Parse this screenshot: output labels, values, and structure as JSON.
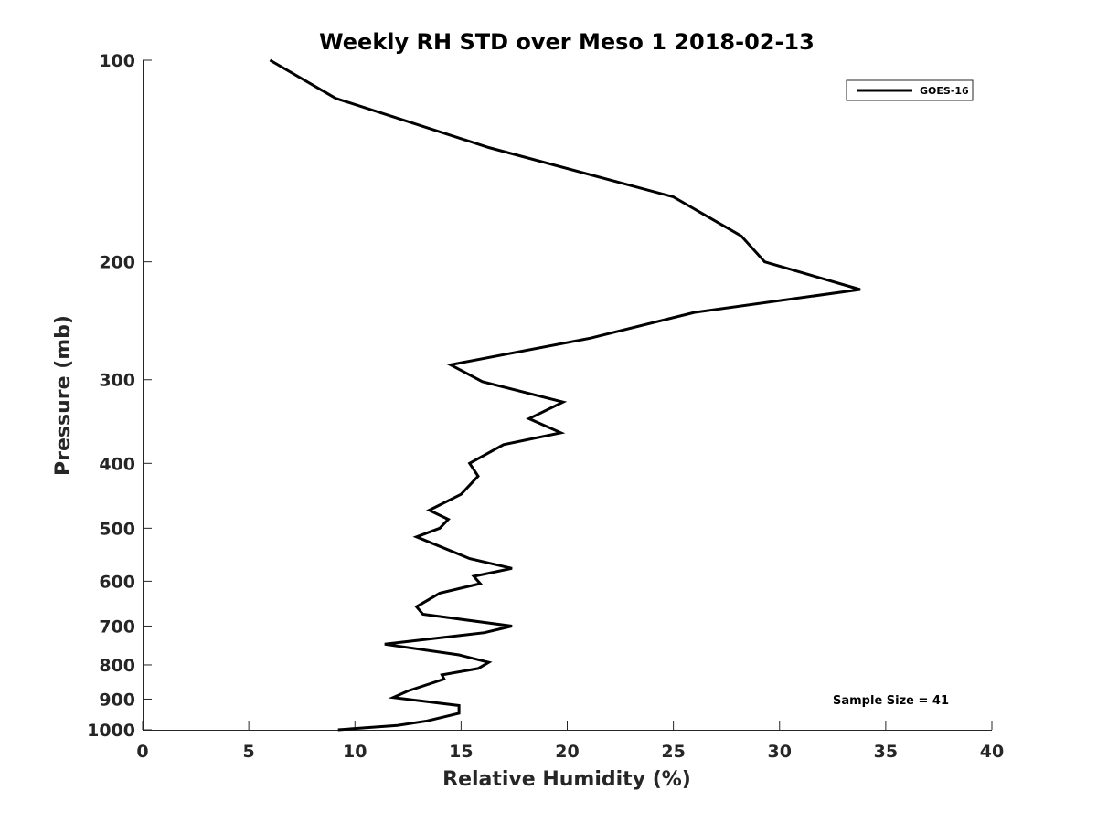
{
  "chart_data": {
    "type": "line",
    "title": "Weekly RH STD over Meso 1 2018-02-13",
    "xlabel": "Relative Humidity (%)",
    "ylabel": "Pressure (mb)",
    "xlim": [
      0,
      40
    ],
    "ylim": [
      100,
      1000
    ],
    "yscale": "log",
    "yreversed": true,
    "xticks": [
      0,
      5,
      10,
      15,
      20,
      25,
      30,
      35,
      40
    ],
    "yticks": [
      100,
      200,
      300,
      400,
      500,
      600,
      700,
      800,
      900,
      1000
    ],
    "grid": false,
    "legend_position": "top-right",
    "series": [
      {
        "name": "GOES-16",
        "color": "#000000",
        "x": [
          6.0,
          9.1,
          16.3,
          25.0,
          28.2,
          29.3,
          33.8,
          26.0,
          21.1,
          14.5,
          16.0,
          19.8,
          18.2,
          19.7,
          17.0,
          15.4,
          15.8,
          15.0,
          13.5,
          14.4,
          14.0,
          12.9,
          15.4,
          17.4,
          15.6,
          15.9,
          14.0,
          12.9,
          13.2,
          17.4,
          16.1,
          11.4,
          14.9,
          16.3,
          15.8,
          14.1,
          14.2,
          12.5,
          11.8,
          14.9,
          14.9,
          13.4,
          12.0,
          9.2
        ],
        "y": [
          100,
          114,
          135,
          160,
          183,
          200,
          220,
          238,
          260,
          285,
          302,
          324,
          343,
          360,
          375,
          400,
          418,
          445,
          470,
          485,
          500,
          515,
          555,
          574,
          590,
          605,
          625,
          655,
          672,
          700,
          716,
          745,
          773,
          793,
          810,
          828,
          840,
          875,
          895,
          920,
          945,
          970,
          985,
          1000
        ]
      }
    ],
    "annotations": [
      "Sample Size = 41"
    ]
  }
}
